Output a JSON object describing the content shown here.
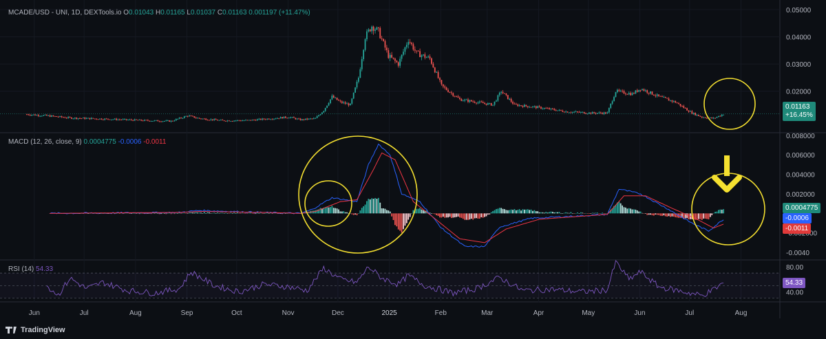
{
  "header": {
    "symbol": "MCADE/USD - UNI, 1D, DEXTools.io",
    "ohlc": [
      {
        "k": "O",
        "v": "0.01043"
      },
      {
        "k": "H",
        "v": "0.01165"
      },
      {
        "k": "L",
        "v": "0.01037"
      },
      {
        "k": "C",
        "v": "0.01163"
      }
    ],
    "change": "0.001197 (+11.47%)"
  },
  "price_tag": {
    "price": "0.01163",
    "change": "+16.45%"
  },
  "macd_header": {
    "label": "MACD (12, 26, close, 9)",
    "hist": "0.0004775",
    "macd": "-0.0006",
    "signal": "-0.0011"
  },
  "macd_tags": {
    "hist": "0.0004775",
    "macd": "-0.0006",
    "signal": "-0.0011"
  },
  "rsi_header": {
    "label": "RSI (14)",
    "value": "54.33"
  },
  "rsi_tag": "54.33",
  "brand": "TradingView",
  "colors": {
    "up": "#26a69a",
    "down": "#ef5350",
    "macd": "#2962ff",
    "signal": "#f23645",
    "rsi": "#7e57c2",
    "annotation": "#f5e030",
    "background": "#0c0f14"
  },
  "annotations": [
    "yellow-circle-price-end",
    "yellow-circle-macd-nov-small",
    "yellow-circle-macd-nov-dec",
    "yellow-circle-macd-end",
    "yellow-down-arrow"
  ],
  "chart_data": [
    {
      "type": "candlestick",
      "title": "MCADE/USD - UNI, 1D, DEXTools.io",
      "x_ticks": [
        "Jun",
        "Jul",
        "Aug",
        "Sep",
        "Oct",
        "Nov",
        "Dec",
        "2025",
        "Feb",
        "Mar",
        "Apr",
        "May",
        "Jun",
        "Jul",
        "Aug"
      ],
      "y_ticks": [
        "0.05000",
        "0.04000",
        "0.03000",
        "0.02000"
      ],
      "ylim": [
        0.005,
        0.052
      ],
      "last_close": 0.01163,
      "series": [
        {
          "name": "price",
          "points": [
            [
              "2024-05-20",
              0.0115
            ],
            [
              "2024-06-01",
              0.011
            ],
            [
              "2024-06-15",
              0.0102
            ],
            [
              "2024-07-01",
              0.0099
            ],
            [
              "2024-07-15",
              0.0096
            ],
            [
              "2024-08-01",
              0.0092
            ],
            [
              "2024-08-15",
              0.009
            ],
            [
              "2024-08-25",
              0.011
            ],
            [
              "2024-09-01",
              0.01
            ],
            [
              "2024-09-15",
              0.0092
            ],
            [
              "2024-10-01",
              0.0093
            ],
            [
              "2024-10-15",
              0.01
            ],
            [
              "2024-10-25",
              0.0105
            ],
            [
              "2024-11-01",
              0.0095
            ],
            [
              "2024-11-10",
              0.01
            ],
            [
              "2024-11-15",
              0.013
            ],
            [
              "2024-11-20",
              0.018
            ],
            [
              "2024-11-25",
              0.016
            ],
            [
              "2024-12-01",
              0.015
            ],
            [
              "2024-12-06",
              0.025
            ],
            [
              "2024-12-10",
              0.04
            ],
            [
              "2024-12-14",
              0.044
            ],
            [
              "2024-12-18",
              0.042
            ],
            [
              "2024-12-24",
              0.033
            ],
            [
              "2024-12-30",
              0.03
            ],
            [
              "2025-01-05",
              0.039
            ],
            [
              "2025-01-10",
              0.034
            ],
            [
              "2025-01-18",
              0.032
            ],
            [
              "2025-01-25",
              0.022
            ],
            [
              "2025-02-05",
              0.017
            ],
            [
              "2025-02-15",
              0.016
            ],
            [
              "2025-02-25",
              0.015
            ],
            [
              "2025-03-02",
              0.02
            ],
            [
              "2025-03-10",
              0.015
            ],
            [
              "2025-03-25",
              0.014
            ],
            [
              "2025-04-10",
              0.0125
            ],
            [
              "2025-04-25",
              0.012
            ],
            [
              "2025-05-05",
              0.012
            ],
            [
              "2025-05-10",
              0.02
            ],
            [
              "2025-05-20",
              0.019
            ],
            [
              "2025-05-25",
              0.021
            ],
            [
              "2025-06-05",
              0.018
            ],
            [
              "2025-06-15",
              0.016
            ],
            [
              "2025-06-25",
              0.012
            ],
            [
              "2025-07-01",
              0.0105
            ],
            [
              "2025-07-08",
              0.01
            ],
            [
              "2025-07-14",
              0.01163
            ]
          ]
        }
      ]
    },
    {
      "type": "line",
      "title": "MACD (12, 26, close, 9)",
      "y_ticks": [
        "0.008000",
        "0.006000",
        "0.004000",
        "0.002000",
        "-0.002000",
        "-0.0040"
      ],
      "ylim": [
        -0.0047,
        0.0082
      ],
      "series": [
        {
          "name": "MACD",
          "points": [
            [
              "2024-06-01",
              0
            ],
            [
              "2024-08-20",
              0.0001
            ],
            [
              "2024-09-01",
              0.0003
            ],
            [
              "2024-10-10",
              0.0001
            ],
            [
              "2024-11-01",
              0
            ],
            [
              "2024-11-08",
              0.0004
            ],
            [
              "2024-11-20",
              0.0016
            ],
            [
              "2024-11-28",
              0.0014
            ],
            [
              "2024-12-05",
              0.0012
            ],
            [
              "2024-12-12",
              0.005
            ],
            [
              "2024-12-18",
              0.0071
            ],
            [
              "2024-12-25",
              0.006
            ],
            [
              "2025-01-01",
              0.002
            ],
            [
              "2025-01-12",
              0.0012
            ],
            [
              "2025-01-25",
              -0.0015
            ],
            [
              "2025-02-08",
              -0.0034
            ],
            [
              "2025-02-20",
              -0.0034
            ],
            [
              "2025-03-01",
              -0.0014
            ],
            [
              "2025-03-20",
              -0.0005
            ],
            [
              "2025-04-25",
              -0.0002
            ],
            [
              "2025-05-05",
              -0.0001
            ],
            [
              "2025-05-12",
              0.0025
            ],
            [
              "2025-05-25",
              0.002
            ],
            [
              "2025-06-10",
              0.0005
            ],
            [
              "2025-06-25",
              -0.001
            ],
            [
              "2025-07-05",
              -0.0018
            ],
            [
              "2025-07-14",
              -0.0006
            ]
          ]
        },
        {
          "name": "Signal",
          "points": [
            [
              "2024-06-01",
              0
            ],
            [
              "2024-08-20",
              0.0001
            ],
            [
              "2024-09-01",
              0.0002
            ],
            [
              "2024-10-10",
              0.0001
            ],
            [
              "2024-11-01",
              0
            ],
            [
              "2024-11-10",
              0.0002
            ],
            [
              "2024-11-25",
              0.0012
            ],
            [
              "2024-12-05",
              0.0014
            ],
            [
              "2024-12-15",
              0.0045
            ],
            [
              "2024-12-20",
              0.0062
            ],
            [
              "2024-12-28",
              0.0055
            ],
            [
              "2025-01-08",
              0.0012
            ],
            [
              "2025-01-20",
              -0.0004
            ],
            [
              "2025-02-05",
              -0.0026
            ],
            [
              "2025-02-20",
              -0.003
            ],
            [
              "2025-03-05",
              -0.0016
            ],
            [
              "2025-03-25",
              -0.0006
            ],
            [
              "2025-05-05",
              -0.0001
            ],
            [
              "2025-05-15",
              0.0018
            ],
            [
              "2025-05-28",
              0.0018
            ],
            [
              "2025-06-12",
              0.0006
            ],
            [
              "2025-06-28",
              -0.0006
            ],
            [
              "2025-07-08",
              -0.0015
            ],
            [
              "2025-07-14",
              -0.0011
            ]
          ]
        },
        {
          "name": "Histogram",
          "last": 0.0004775
        }
      ]
    },
    {
      "type": "line",
      "title": "RSI (14)",
      "y_ticks": [
        "80.00",
        "40.00"
      ],
      "ylim": [
        25,
        90
      ],
      "bands": [
        70,
        50,
        30
      ],
      "series": [
        {
          "name": "RSI",
          "points": [
            [
              "2024-06-01",
              50
            ],
            [
              "2024-06-08",
              35
            ],
            [
              "2024-06-15",
              62
            ],
            [
              "2024-06-25",
              45
            ],
            [
              "2024-07-05",
              55
            ],
            [
              "2024-07-20",
              42
            ],
            [
              "2024-08-05",
              38
            ],
            [
              "2024-08-20",
              45
            ],
            [
              "2024-08-27",
              72
            ],
            [
              "2024-09-10",
              50
            ],
            [
              "2024-09-25",
              40
            ],
            [
              "2024-10-10",
              52
            ],
            [
              "2024-10-25",
              48
            ],
            [
              "2024-11-05",
              42
            ],
            [
              "2024-11-15",
              78
            ],
            [
              "2024-11-25",
              60
            ],
            [
              "2024-12-05",
              55
            ],
            [
              "2024-12-12",
              80
            ],
            [
              "2024-12-20",
              62
            ],
            [
              "2024-12-30",
              52
            ],
            [
              "2025-01-05",
              66
            ],
            [
              "2025-01-15",
              50
            ],
            [
              "2025-02-01",
              38
            ],
            [
              "2025-02-15",
              45
            ],
            [
              "2025-03-01",
              63
            ],
            [
              "2025-03-15",
              42
            ],
            [
              "2025-04-01",
              44
            ],
            [
              "2025-04-20",
              40
            ],
            [
              "2025-05-05",
              43
            ],
            [
              "2025-05-10",
              88
            ],
            [
              "2025-05-18",
              60
            ],
            [
              "2025-05-25",
              72
            ],
            [
              "2025-06-05",
              48
            ],
            [
              "2025-06-20",
              40
            ],
            [
              "2025-07-01",
              34
            ],
            [
              "2025-07-07",
              42
            ],
            [
              "2025-07-14",
              54.33
            ]
          ]
        }
      ]
    }
  ]
}
